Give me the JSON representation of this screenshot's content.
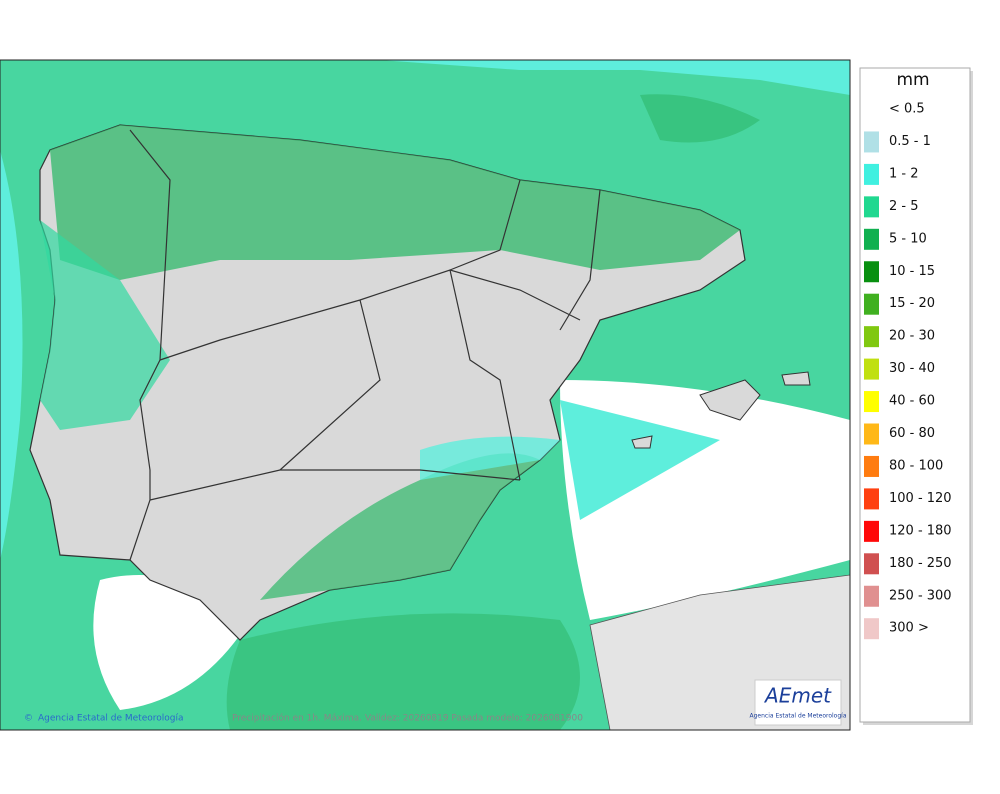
{
  "legend": {
    "title": "mm",
    "items": [
      {
        "label": "< 0.5",
        "color": "#ffffff"
      },
      {
        "label": "0.5 - 1",
        "color": "#b0e0e6"
      },
      {
        "label": "1 - 2",
        "color": "#40f0e0"
      },
      {
        "label": "2 - 5",
        "color": "#20d890"
      },
      {
        "label": "5 - 10",
        "color": "#10b050"
      },
      {
        "label": "10 - 15",
        "color": "#089010"
      },
      {
        "label": "15 - 20",
        "color": "#40b020"
      },
      {
        "label": "20 - 30",
        "color": "#80c810"
      },
      {
        "label": "30 - 40",
        "color": "#c0e010"
      },
      {
        "label": "40 - 60",
        "color": "#ffff00"
      },
      {
        "label": "60 - 80",
        "color": "#ffb818"
      },
      {
        "label": "80 - 100",
        "color": "#ff7c10"
      },
      {
        "label": "100 - 120",
        "color": "#ff4010"
      },
      {
        "label": "120 - 180",
        "color": "#ff0808"
      },
      {
        "label": "180 - 250",
        "color": "#d05050"
      },
      {
        "label": "250 - 300",
        "color": "#e09090"
      },
      {
        "label": "300 >",
        "color": "#f0c8c8"
      }
    ]
  },
  "footer": {
    "credit": "Agencia Estatal de Meteorología",
    "caption": "Precipitación en 1h. Máxima. Validez: 20260819 Pasada modelo: 2026081900"
  },
  "logo": {
    "name": "AEmet",
    "subtitle": "Agencia Estatal de Meteorología"
  }
}
